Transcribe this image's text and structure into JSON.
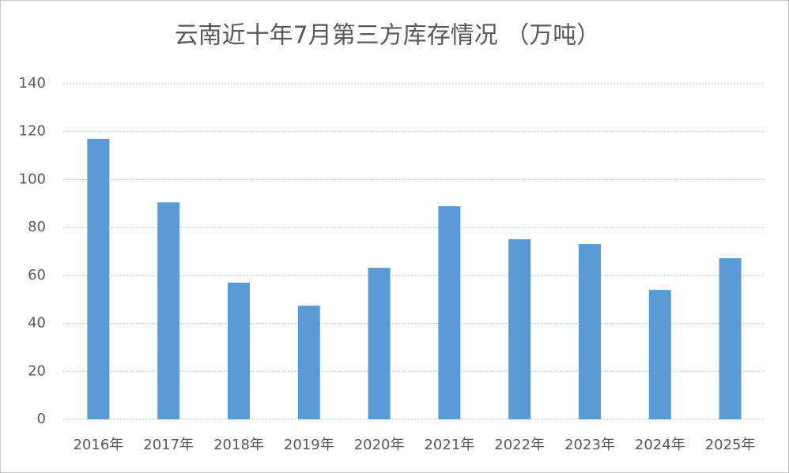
{
  "chart_data": {
    "type": "bar",
    "title": "云南近十年7月第三方库存情况 （万吨）",
    "categories": [
      "2016年",
      "2017年",
      "2018年",
      "2019年",
      "2020年",
      "2021年",
      "2022年",
      "2023年",
      "2024年",
      "2025年"
    ],
    "values": [
      117,
      90.5,
      57,
      47.4,
      63.2,
      88.9,
      75.1,
      73.1,
      54,
      67.2
    ],
    "color": "#5b9bd5",
    "ylim": [
      0,
      140
    ],
    "yticks": [
      0,
      20,
      40,
      60,
      80,
      100,
      120,
      140
    ],
    "grid": true
  }
}
